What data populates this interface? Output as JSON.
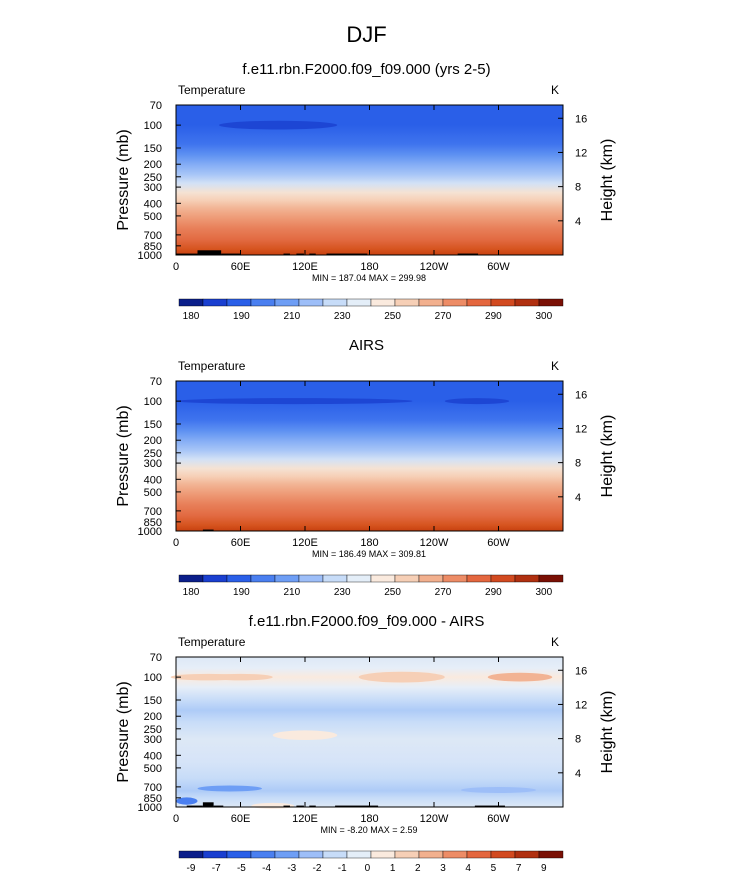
{
  "page_title": "DJF",
  "panels": [
    {
      "title": "f.e11.rbn.F2000.f09_f09.000 (yrs 2-5)",
      "variable": "Temperature",
      "units": "K",
      "minmax": "MIN = 187.04  MAX = 299.98",
      "colorbar_labels": [
        "180",
        "190",
        "210",
        "230",
        "250",
        "270",
        "290",
        "300"
      ]
    },
    {
      "title": "AIRS",
      "variable": "Temperature",
      "units": "K",
      "minmax": "MIN = 186.49  MAX = 309.81",
      "colorbar_labels": [
        "180",
        "190",
        "210",
        "230",
        "250",
        "270",
        "290",
        "300"
      ]
    },
    {
      "title": "f.e11.rbn.F2000.f09_f09.000 - AIRS",
      "variable": "Temperature",
      "units": "K",
      "minmax": "MIN = -8.20  MAX =  2.59",
      "colorbar_labels": [
        "-9",
        "-7",
        "-5",
        "-4",
        "-3",
        "-2",
        "-1",
        "0",
        "1",
        "2",
        "3",
        "4",
        "5",
        "7",
        "9"
      ]
    }
  ],
  "chart_data": [
    {
      "type": "heatmap",
      "title": "f.e11.rbn.F2000.f09_f09.000 (yrs 2-5)",
      "variable": "Temperature",
      "units": "K",
      "xlabel": "",
      "ylabel": "Pressure (mb)",
      "y2label": "Height (km)",
      "xticks": [
        "0",
        "60E",
        "120E",
        "180",
        "120W",
        "60W"
      ],
      "yticks": [
        "70",
        "100",
        "150",
        "200",
        "250",
        "300",
        "400",
        "500",
        "700",
        "850",
        "1000"
      ],
      "y2ticks": [
        "16",
        "12",
        "8",
        "4"
      ],
      "xlim": [
        0,
        360
      ],
      "ylim": [
        1000,
        70
      ],
      "colorbar_levels": [
        180,
        190,
        210,
        230,
        250,
        270,
        290,
        300
      ],
      "colorbar_colors": [
        "#0b1e8a",
        "#1a3fd0",
        "#2a5fe8",
        "#4a7ff0",
        "#6e9ef5",
        "#9dbef8",
        "#c7dcf8",
        "#e4eef8",
        "#faeade",
        "#f6cfb6",
        "#f2b08e",
        "#ed8c66",
        "#e4673f",
        "#d24a20",
        "#b03010",
        "#7a1005"
      ],
      "profile": [
        {
          "p": 70,
          "color": "#2a5fe8"
        },
        {
          "p": 100,
          "color": "#2a5fe8"
        },
        {
          "p": 140,
          "color": "#3f74ee"
        },
        {
          "p": 170,
          "color": "#5f92f2"
        },
        {
          "p": 200,
          "color": "#83acf5"
        },
        {
          "p": 240,
          "color": "#a8c6f7"
        },
        {
          "p": 280,
          "color": "#d2e1f6"
        },
        {
          "p": 330,
          "color": "#f5e2d3"
        },
        {
          "p": 380,
          "color": "#f6cfb6"
        },
        {
          "p": 440,
          "color": "#f2b393"
        },
        {
          "p": 520,
          "color": "#ee9a76"
        },
        {
          "p": 620,
          "color": "#e8805a"
        },
        {
          "p": 760,
          "color": "#e26a42"
        },
        {
          "p": 900,
          "color": "#d6541f"
        },
        {
          "p": 1000,
          "color": "#c7400f"
        }
      ],
      "features": [
        {
          "kind": "blob",
          "lon": 95,
          "lon_width": 55,
          "p": 100,
          "p_half": 8,
          "color": "#1d46d4"
        }
      ],
      "terrain": [
        {
          "lon0": 0,
          "lon1": 20,
          "p_top": 975
        },
        {
          "lon0": 20,
          "lon1": 42,
          "p_top": 920
        },
        {
          "lon0": 42,
          "lon1": 60,
          "p_top": 975
        },
        {
          "lon0": 100,
          "lon1": 106,
          "p_top": 975
        },
        {
          "lon0": 112,
          "lon1": 119,
          "p_top": 975
        },
        {
          "lon0": 124,
          "lon1": 130,
          "p_top": 975
        },
        {
          "lon0": 140,
          "lon1": 178,
          "p_top": 975
        },
        {
          "lon0": 262,
          "lon1": 281,
          "p_top": 975
        }
      ]
    },
    {
      "type": "heatmap",
      "title": "AIRS",
      "variable": "Temperature",
      "units": "K",
      "xlabel": "",
      "ylabel": "Pressure (mb)",
      "y2label": "Height (km)",
      "xticks": [
        "0",
        "60E",
        "120E",
        "180",
        "120W",
        "60W"
      ],
      "yticks": [
        "70",
        "100",
        "150",
        "200",
        "250",
        "300",
        "400",
        "500",
        "700",
        "850",
        "1000"
      ],
      "y2ticks": [
        "16",
        "12",
        "8",
        "4"
      ],
      "xlim": [
        0,
        360
      ],
      "ylim": [
        1000,
        70
      ],
      "colorbar_levels": [
        180,
        190,
        210,
        230,
        250,
        270,
        290,
        300
      ],
      "colorbar_colors": [
        "#0b1e8a",
        "#1a3fd0",
        "#2a5fe8",
        "#4a7ff0",
        "#6e9ef5",
        "#9dbef8",
        "#c7dcf8",
        "#e4eef8",
        "#faeade",
        "#f6cfb6",
        "#f2b08e",
        "#ed8c66",
        "#e4673f",
        "#d24a20",
        "#b03010",
        "#7a1005"
      ],
      "profile": [
        {
          "p": 70,
          "color": "#2a5fe8"
        },
        {
          "p": 100,
          "color": "#2a5fe8"
        },
        {
          "p": 140,
          "color": "#3f74ee"
        },
        {
          "p": 170,
          "color": "#5f92f2"
        },
        {
          "p": 200,
          "color": "#83acf5"
        },
        {
          "p": 240,
          "color": "#a8c6f7"
        },
        {
          "p": 280,
          "color": "#d2e1f6"
        },
        {
          "p": 330,
          "color": "#f5e2d3"
        },
        {
          "p": 380,
          "color": "#f6cfb6"
        },
        {
          "p": 440,
          "color": "#f2b393"
        },
        {
          "p": 520,
          "color": "#ee9a76"
        },
        {
          "p": 620,
          "color": "#e8805a"
        },
        {
          "p": 760,
          "color": "#e26a42"
        },
        {
          "p": 900,
          "color": "#d6541f"
        },
        {
          "p": 1000,
          "color": "#c7400f"
        }
      ],
      "features": [
        {
          "kind": "band",
          "lon": 110,
          "lon_width": 110,
          "p": 100,
          "p_half": 5,
          "color": "#1d46d4"
        },
        {
          "kind": "blob",
          "lon": 280,
          "lon_width": 30,
          "p": 100,
          "p_half": 4,
          "color": "#1d46d4"
        }
      ],
      "terrain": [
        {
          "lon0": 25,
          "lon1": 35,
          "p_top": 975
        }
      ]
    },
    {
      "type": "heatmap",
      "title": "f.e11.rbn.F2000.f09_f09.000 - AIRS",
      "variable": "Temperature",
      "units": "K",
      "xlabel": "",
      "ylabel": "Pressure (mb)",
      "y2label": "Height (km)",
      "xticks": [
        "0",
        "60E",
        "120E",
        "180",
        "120W",
        "60W"
      ],
      "yticks": [
        "70",
        "100",
        "150",
        "200",
        "250",
        "300",
        "400",
        "500",
        "700",
        "850",
        "1000"
      ],
      "y2ticks": [
        "16",
        "12",
        "8",
        "4"
      ],
      "xlim": [
        0,
        360
      ],
      "ylim": [
        1000,
        70
      ],
      "colorbar_levels": [
        -9,
        -7,
        -5,
        -4,
        -3,
        -2,
        -1,
        0,
        1,
        2,
        3,
        4,
        5,
        7,
        9
      ],
      "colorbar_colors": [
        "#0b1e8a",
        "#1a3fd0",
        "#2a5fe8",
        "#4a7ff0",
        "#6e9ef5",
        "#9dbef8",
        "#c7dcf8",
        "#e4eef8",
        "#faeade",
        "#f6cfb6",
        "#f2b08e",
        "#ed8c66",
        "#e4673f",
        "#d24a20",
        "#b03010",
        "#7a1005"
      ],
      "profile": [
        {
          "p": 70,
          "color": "#dde8f6"
        },
        {
          "p": 85,
          "color": "#e6eef8"
        },
        {
          "p": 100,
          "color": "#faeade"
        },
        {
          "p": 120,
          "color": "#e6eef8"
        },
        {
          "p": 150,
          "color": "#c7dcf8"
        },
        {
          "p": 180,
          "color": "#aecbf7"
        },
        {
          "p": 220,
          "color": "#c7dcf8"
        },
        {
          "p": 300,
          "color": "#dde8f6"
        },
        {
          "p": 450,
          "color": "#d6e4f8"
        },
        {
          "p": 600,
          "color": "#c7dcf8"
        },
        {
          "p": 750,
          "color": "#aecbf7"
        },
        {
          "p": 850,
          "color": "#c7dcf8"
        },
        {
          "p": 1000,
          "color": "#dde8f6"
        }
      ],
      "features": [
        {
          "kind": "blob",
          "lon": 30,
          "lon_width": 35,
          "p": 100,
          "p_half": 6,
          "color": "#f6cfb6"
        },
        {
          "kind": "blob",
          "lon": 60,
          "lon_width": 30,
          "p": 100,
          "p_half": 6,
          "color": "#f6cfb6"
        },
        {
          "kind": "blob",
          "lon": 210,
          "lon_width": 40,
          "p": 100,
          "p_half": 10,
          "color": "#f6cfb6"
        },
        {
          "kind": "blob",
          "lon": 320,
          "lon_width": 30,
          "p": 100,
          "p_half": 8,
          "color": "#f2b393"
        },
        {
          "kind": "blob",
          "lon": 120,
          "lon_width": 30,
          "p": 280,
          "p_half": 25,
          "color": "#faeade"
        },
        {
          "kind": "blob",
          "lon": 50,
          "lon_width": 30,
          "p": 720,
          "p_half": 30,
          "color": "#6e9ef5"
        },
        {
          "kind": "blob",
          "lon": 300,
          "lon_width": 35,
          "p": 740,
          "p_half": 30,
          "color": "#9dbef8"
        },
        {
          "kind": "blob",
          "lon": 10,
          "lon_width": 10,
          "p": 900,
          "p_half": 60,
          "color": "#4a7ff0"
        },
        {
          "kind": "blob",
          "lon": 90,
          "lon_width": 20,
          "p": 980,
          "p_half": 15,
          "color": "#faeade"
        }
      ],
      "terrain": [
        {
          "lon0": 10,
          "lon1": 25,
          "p_top": 975
        },
        {
          "lon0": 25,
          "lon1": 35,
          "p_top": 920
        },
        {
          "lon0": 35,
          "lon1": 44,
          "p_top": 975
        },
        {
          "lon0": 100,
          "lon1": 106,
          "p_top": 975
        },
        {
          "lon0": 112,
          "lon1": 119,
          "p_top": 975
        },
        {
          "lon0": 124,
          "lon1": 130,
          "p_top": 975
        },
        {
          "lon0": 148,
          "lon1": 188,
          "p_top": 975
        },
        {
          "lon0": 278,
          "lon1": 306,
          "p_top": 975
        }
      ]
    }
  ]
}
